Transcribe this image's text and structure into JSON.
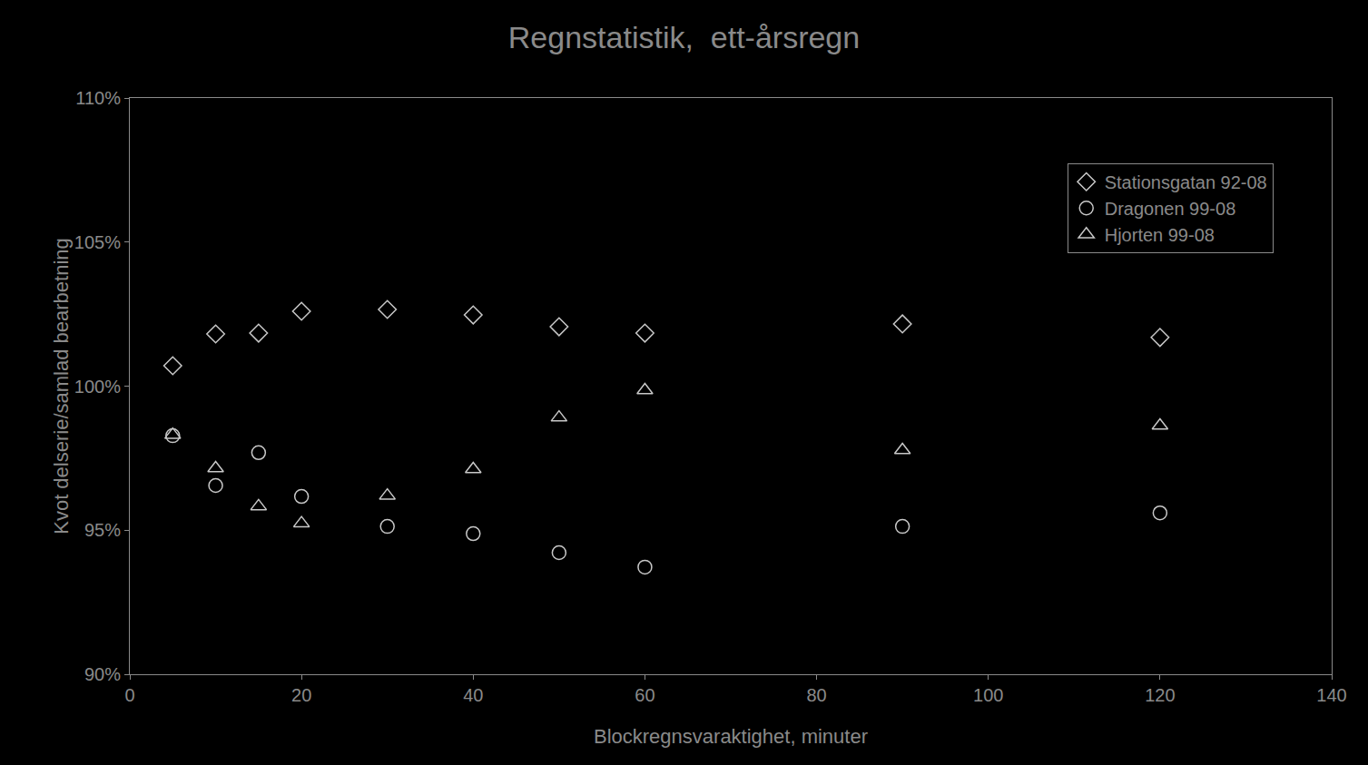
{
  "chart_data": {
    "type": "scatter",
    "title": "Regnstatistik,  ett-årsregn",
    "x_label": "Blockregnsvaraktighet, minuter",
    "y_label": "Kvot delserie/samlad bearbetning",
    "x": [
      5,
      10,
      15,
      20,
      30,
      40,
      50,
      60,
      90,
      120
    ],
    "series": [
      {
        "name": "Stationsgatan 92-08",
        "color": "#c8c8c8",
        "marker": "diamond-open",
        "values": [
          100.71,
          101.81,
          101.84,
          102.6,
          102.66,
          102.47,
          102.06,
          101.84,
          102.16,
          101.69
        ]
      },
      {
        "name": "Dragonen 99-08",
        "color": "#c8c8c8",
        "marker": "circle-open",
        "values": [
          98.28,
          96.55,
          97.69,
          96.17,
          95.13,
          94.88,
          94.22,
          93.72,
          95.13,
          95.6
        ]
      },
      {
        "name": "Hjorten 99-08",
        "color": "#c8c8c8",
        "marker": "triangle-up-open",
        "values": [
          98.31,
          97.15,
          95.83,
          95.24,
          96.2,
          97.12,
          98.91,
          99.86,
          97.78,
          98.63
        ]
      }
    ],
    "xlim": [
      0,
      140
    ],
    "xticks": [
      0,
      20,
      40,
      60,
      80,
      100,
      120,
      140
    ],
    "ylim": [
      90,
      110
    ],
    "yticks": [
      {
        "value": 90,
        "label": "90%"
      },
      {
        "value": 95,
        "label": "95%"
      },
      {
        "value": 100,
        "label": "100%"
      },
      {
        "value": 105,
        "label": "105%"
      },
      {
        "value": 110,
        "label": "110%"
      }
    ],
    "grid": false,
    "legend": "upper right"
  }
}
